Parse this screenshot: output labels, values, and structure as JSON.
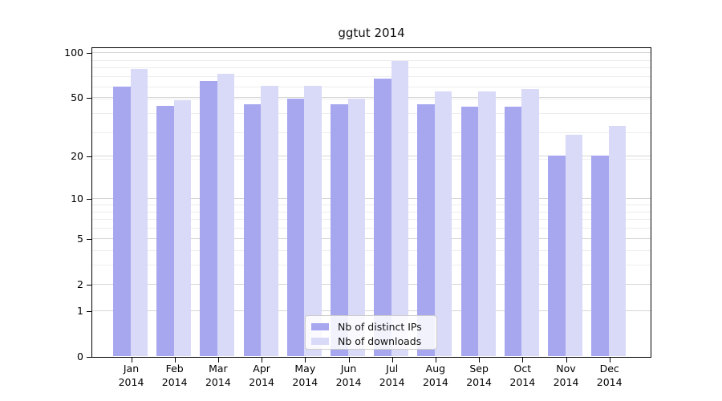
{
  "chart_data": {
    "type": "bar",
    "title": "ggtut 2014",
    "categories": [
      "Jan 2014",
      "Feb 2014",
      "Mar 2014",
      "Apr 2014",
      "May 2014",
      "Jun 2014",
      "Jul 2014",
      "Aug 2014",
      "Sep 2014",
      "Oct 2014",
      "Nov 2014",
      "Dec 2014"
    ],
    "series": [
      {
        "name": "Nb of distinct IPs",
        "color": "#a7a7f0",
        "values": [
          59,
          44,
          64,
          45,
          49,
          45,
          67,
          45,
          43,
          43,
          20,
          20
        ]
      },
      {
        "name": "Nb of downloads",
        "color": "#d9d9f8",
        "values": [
          77,
          48,
          72,
          60,
          60,
          49,
          88,
          55,
          55,
          57,
          28,
          32
        ]
      }
    ],
    "xlabel": "",
    "ylabel": "",
    "yscale": "log1p",
    "yticks": [
      0,
      1,
      2,
      5,
      10,
      20,
      50,
      100
    ],
    "ylim": [
      0,
      108
    ],
    "grid": "major and minor horizontal",
    "legend_position": "lower center"
  },
  "colors": {
    "background": "#ffffff",
    "axis": "#000000",
    "major_grid": "#d6d6d6",
    "minor_grid": "#ededed",
    "legend_border": "#cccccc"
  }
}
